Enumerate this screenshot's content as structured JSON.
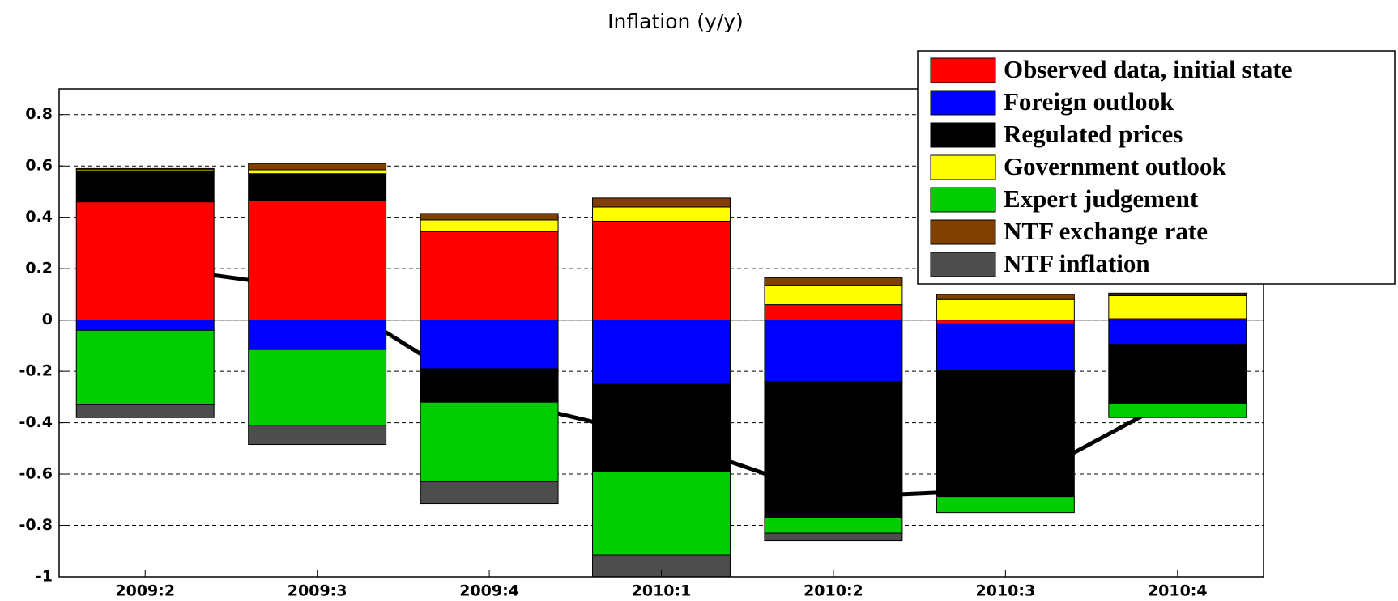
{
  "chart_data": {
    "type": "stacked-bar",
    "title": "Inflation (y/y)",
    "categories": [
      "2009:2",
      "2009:3",
      "2009:4",
      "2010:1",
      "2010:2",
      "2010:3",
      "2010:4"
    ],
    "series": [
      {
        "name": "Observed data, initial state",
        "color": "#ff0000",
        "values": [
          0.46,
          0.465,
          0.345,
          0.385,
          0.06,
          -0.015,
          0.005
        ]
      },
      {
        "name": "Foreign outlook",
        "color": "#0000ff",
        "values": [
          -0.04,
          -0.115,
          -0.19,
          -0.25,
          -0.24,
          -0.18,
          -0.095
        ]
      },
      {
        "name": "Regulated prices",
        "color": "#000000",
        "values": [
          0.12,
          0.105,
          -0.13,
          -0.34,
          -0.53,
          -0.495,
          -0.23
        ]
      },
      {
        "name": "Government outlook",
        "color": "#ffff00",
        "values": [
          0.005,
          0.015,
          0.045,
          0.055,
          0.075,
          0.08,
          0.09
        ]
      },
      {
        "name": "Expert judgement",
        "color": "#00cc00",
        "values": [
          -0.29,
          -0.295,
          -0.31,
          -0.325,
          -0.06,
          -0.06,
          -0.055
        ]
      },
      {
        "name": "NTF exchange rate",
        "color": "#804000",
        "values": [
          0.005,
          0.025,
          0.025,
          0.035,
          0.03,
          0.02,
          0.005
        ]
      },
      {
        "name": "NTF inflation",
        "color": "#4d4d4d",
        "values": [
          -0.05,
          -0.075,
          -0.085,
          -0.085,
          -0.03,
          0,
          0.005
        ]
      }
    ],
    "line": {
      "color": "#000000",
      "values": [
        0.21,
        0.12,
        -0.3,
        -0.46,
        -0.69,
        -0.66,
        -0.3
      ]
    },
    "ylim": [
      -1,
      0.9
    ],
    "yticks": [
      -1,
      -0.8,
      -0.6,
      -0.4,
      -0.2,
      0,
      0.2,
      0.4,
      0.6,
      0.8
    ],
    "grid": true,
    "legend": "upper right"
  }
}
